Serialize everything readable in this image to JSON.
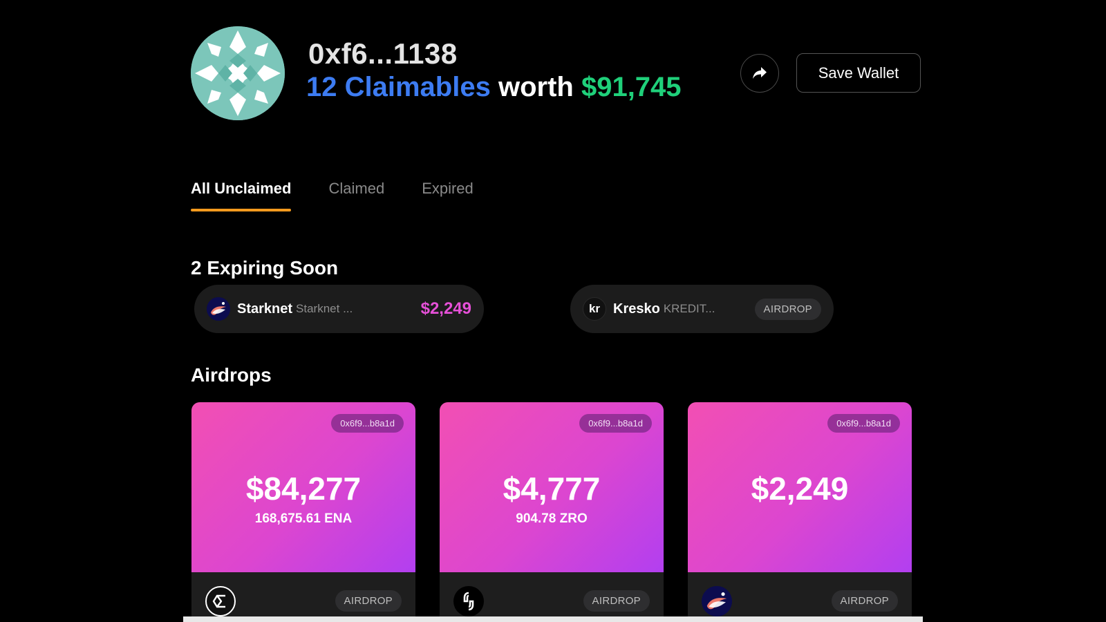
{
  "header": {
    "wallet_address": "0xf6...1138",
    "claimables_text": "12 Claimables",
    "worth_text": "worth",
    "total_value": "$91,745",
    "save_label": "Save Wallet",
    "share_icon": "share-arrow-icon"
  },
  "tabs": [
    {
      "label": "All Unclaimed",
      "active": true
    },
    {
      "label": "Claimed",
      "active": false
    },
    {
      "label": "Expired",
      "active": false
    }
  ],
  "expiring": {
    "heading": "2 Expiring Soon",
    "items": [
      {
        "name": "Starknet",
        "sub": "Starknet ...",
        "value": "$2,249",
        "icon": "starknet-icon"
      },
      {
        "name": "Kresko",
        "sub": "KREDIT...",
        "badge": "AIRDROP",
        "icon": "kresko-icon",
        "icon_text": "kr"
      }
    ]
  },
  "airdrops": {
    "heading": "Airdrops",
    "cards": [
      {
        "address": "0x6f9...b8a1d",
        "value": "$84,277",
        "amount": "168,675.61 ENA",
        "badge": "AIRDROP",
        "icon": "ethena-icon"
      },
      {
        "address": "0x6f9...b8a1d",
        "value": "$4,777",
        "amount": "904.78 ZRO",
        "badge": "AIRDROP",
        "icon": "layerzero-icon"
      },
      {
        "address": "0x6f9...b8a1d",
        "value": "$2,249",
        "amount": "",
        "badge": "AIRDROP",
        "icon": "starknet-icon"
      }
    ]
  },
  "colors": {
    "background": "#000000",
    "claimables_blue": "#3d7cf2",
    "total_green": "#1fd07a",
    "expiring_value_pink": "#e650d8",
    "tab_underline": "#f39a1e",
    "card_gradient_start": "#f24fb3",
    "card_gradient_end": "#b23ff0",
    "avatar_teal": "#78c4b8"
  }
}
